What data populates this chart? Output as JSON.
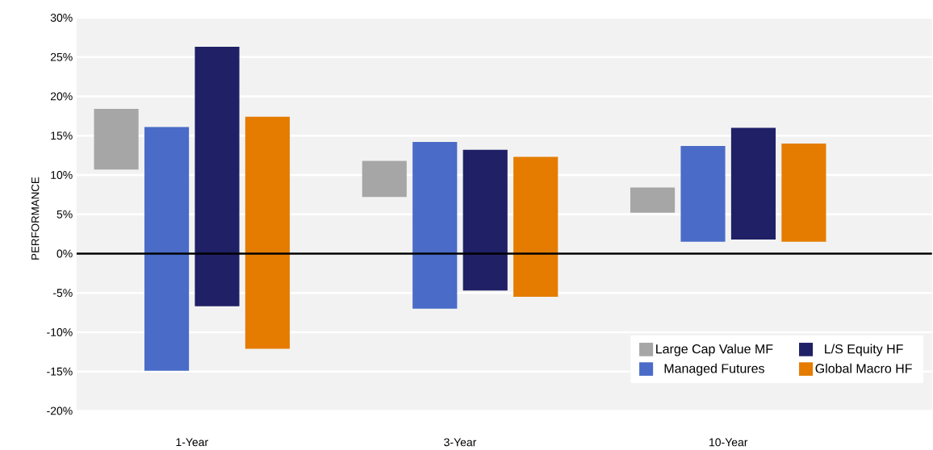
{
  "chart_data": {
    "type": "bar",
    "categories": [
      "1-Year",
      "3-Year",
      "10-Year"
    ],
    "ylabel": "PERFORMANCE",
    "series": [
      {
        "name": "Large Cap Value MF",
        "color": "#a6a6a6",
        "base": [
          10.7,
          7.2,
          5.2
        ],
        "values": [
          7.7,
          4.6,
          3.2
        ]
      },
      {
        "name": "Managed Futures",
        "color": "#4a6cc8",
        "base": [
          -14.9,
          -7.0,
          1.5
        ],
        "values": [
          31.0,
          21.2,
          12.2
        ]
      },
      {
        "name": "L/S Equity HF",
        "color": "#1f2066",
        "base": [
          -6.7,
          -4.7,
          1.8
        ],
        "values": [
          33.0,
          17.9,
          14.2
        ]
      },
      {
        "name": "Global Macro HF",
        "color": "#e57c00",
        "base": [
          -12.1,
          -5.5,
          1.5
        ],
        "values": [
          29.5,
          17.8,
          12.5
        ]
      }
    ],
    "ylim": [
      -20,
      30
    ],
    "yticks": [
      {
        "value": -20,
        "label": "-20%"
      },
      {
        "value": -15,
        "label": "-15%"
      },
      {
        "value": -10,
        "label": "-10%"
      },
      {
        "value": -5,
        "label": "-5%"
      },
      {
        "value": 0,
        "label": "0%"
      },
      {
        "value": 5,
        "label": "5%"
      },
      {
        "value": 10,
        "label": "10%"
      },
      {
        "value": 15,
        "label": "15%"
      },
      {
        "value": 20,
        "label": "20%"
      },
      {
        "value": 25,
        "label": "25%"
      },
      {
        "value": 30,
        "label": "30%"
      }
    ],
    "grid": "y",
    "legend": "bottom right",
    "ref_lines": [
      {
        "axis": "y",
        "value": 0,
        "color": "#000000"
      }
    ]
  }
}
